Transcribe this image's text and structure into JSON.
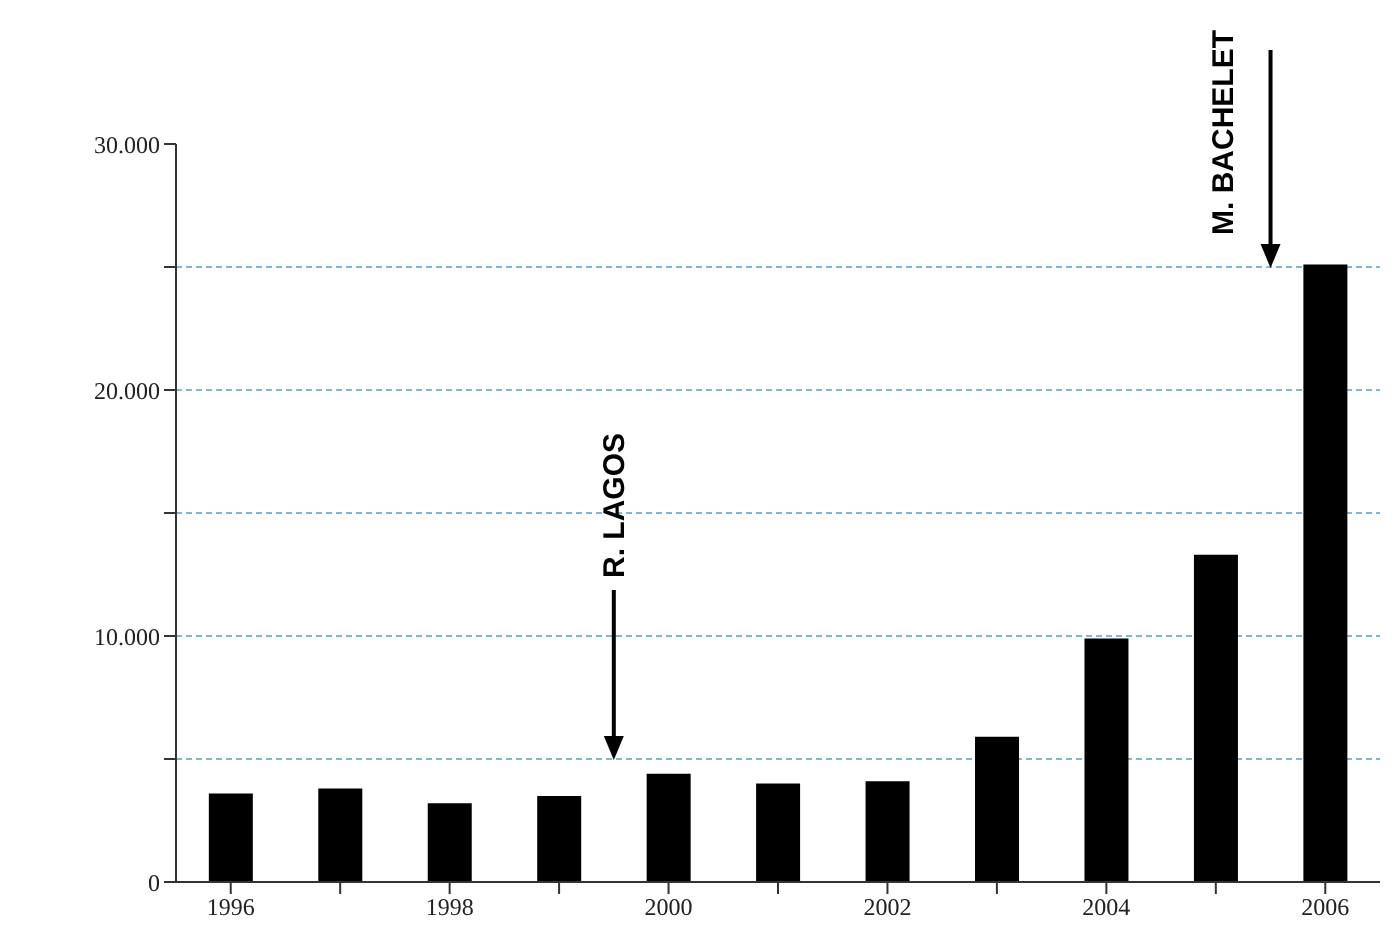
{
  "chart_data": {
    "type": "bar",
    "categories": [
      "1996",
      null,
      "1998",
      null,
      "2000",
      null,
      "2002",
      null,
      "2004",
      null,
      "2006"
    ],
    "values": [
      3600,
      3800,
      3200,
      3500,
      4400,
      4000,
      4100,
      5900,
      9900,
      13300,
      25100
    ],
    "color": "#000000",
    "ylim": [
      0,
      30000
    ],
    "yticks": [
      {
        "value": 0,
        "label": "0"
      },
      {
        "value": 5000,
        "label": null
      },
      {
        "value": 10000,
        "label": "10.000"
      },
      {
        "value": 15000,
        "label": null
      },
      {
        "value": 20000,
        "label": "20.000"
      },
      {
        "value": 25000,
        "label": null
      },
      {
        "value": 30000,
        "label": "30.000"
      }
    ],
    "grid": "y",
    "annotations": [
      "R. LAGOS",
      "M. BACHELET"
    ]
  }
}
